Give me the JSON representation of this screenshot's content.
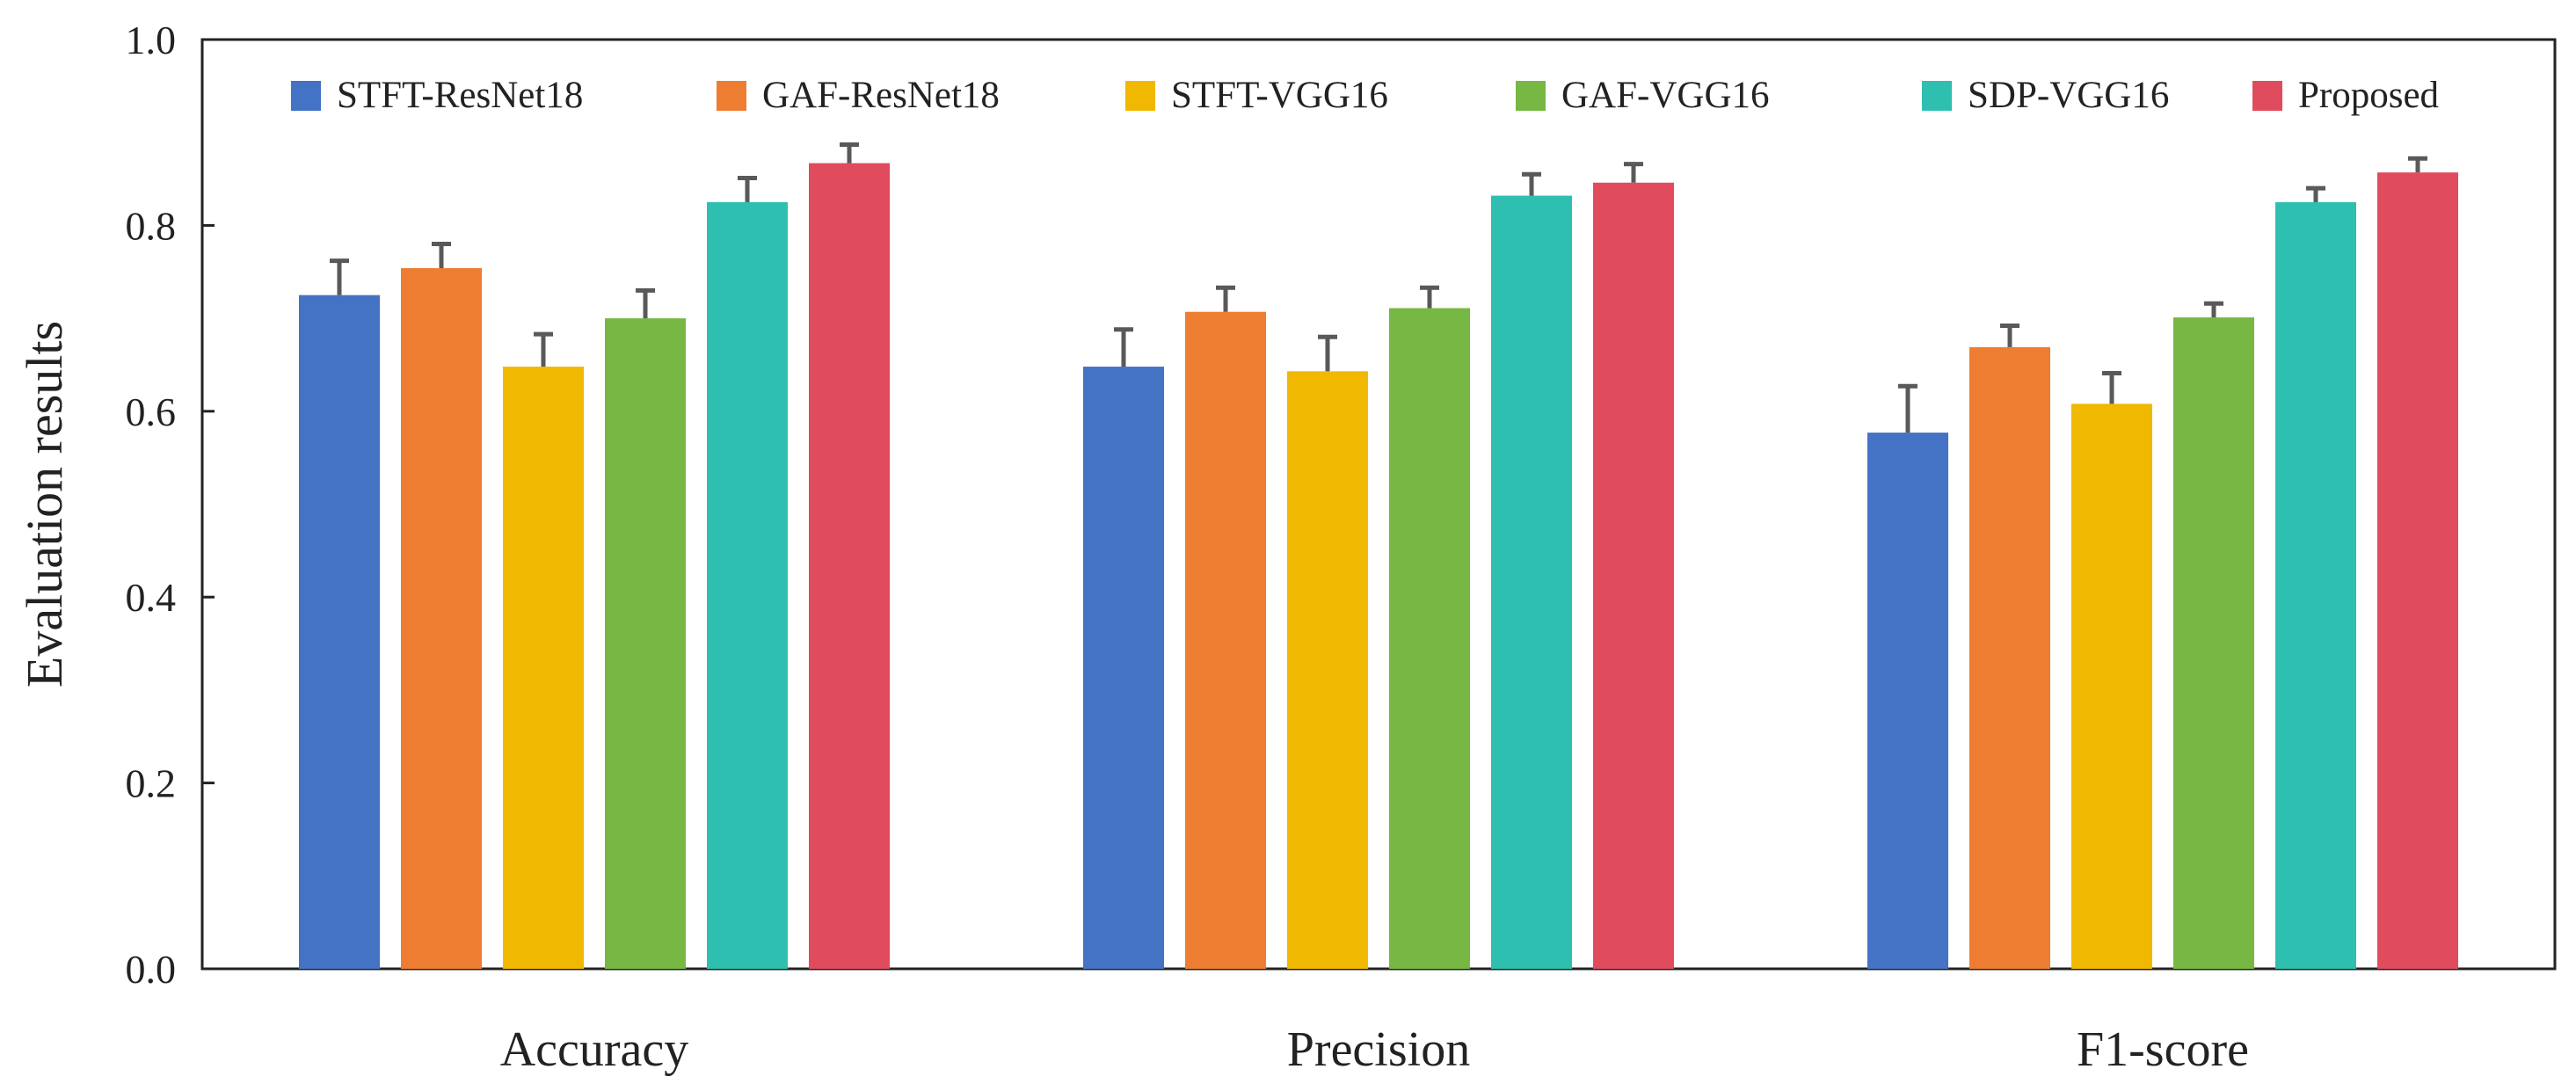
{
  "chart_data": {
    "type": "bar",
    "ylabel": "Evaluation results",
    "xlabel": "",
    "ylim": [
      0.0,
      1.0
    ],
    "yticks": [
      "0.0",
      "0.2",
      "0.4",
      "0.6",
      "0.8",
      "1.0"
    ],
    "ytick_values": [
      0.0,
      0.2,
      0.4,
      0.6,
      0.8,
      1.0
    ],
    "grid": false,
    "legend_position": "top",
    "categories": [
      "Accuracy",
      "Precision",
      "F1-score"
    ],
    "series": [
      {
        "name": "STFT-ResNet18",
        "color": "#4472C4",
        "values": [
          0.725,
          0.648,
          0.577
        ],
        "errors": [
          0.037,
          0.04,
          0.05
        ]
      },
      {
        "name": "GAF-ResNet18",
        "color": "#ED7D31",
        "values": [
          0.754,
          0.707,
          0.669
        ],
        "errors": [
          0.026,
          0.026,
          0.023
        ]
      },
      {
        "name": "STFT-VGG16",
        "color": "#F0B800",
        "values": [
          0.648,
          0.643,
          0.608
        ],
        "errors": [
          0.035,
          0.037,
          0.033
        ]
      },
      {
        "name": "GAF-VGG16",
        "color": "#76B843",
        "values": [
          0.7,
          0.711,
          0.701
        ],
        "errors": [
          0.03,
          0.022,
          0.015
        ]
      },
      {
        "name": "SDP-VGG16",
        "color": "#2FBFB0",
        "values": [
          0.825,
          0.832,
          0.825
        ],
        "errors": [
          0.026,
          0.023,
          0.015
        ]
      },
      {
        "name": "Proposed",
        "color": "#E14B5E",
        "values": [
          0.867,
          0.846,
          0.857
        ],
        "errors": [
          0.02,
          0.02,
          0.015
        ]
      }
    ]
  }
}
